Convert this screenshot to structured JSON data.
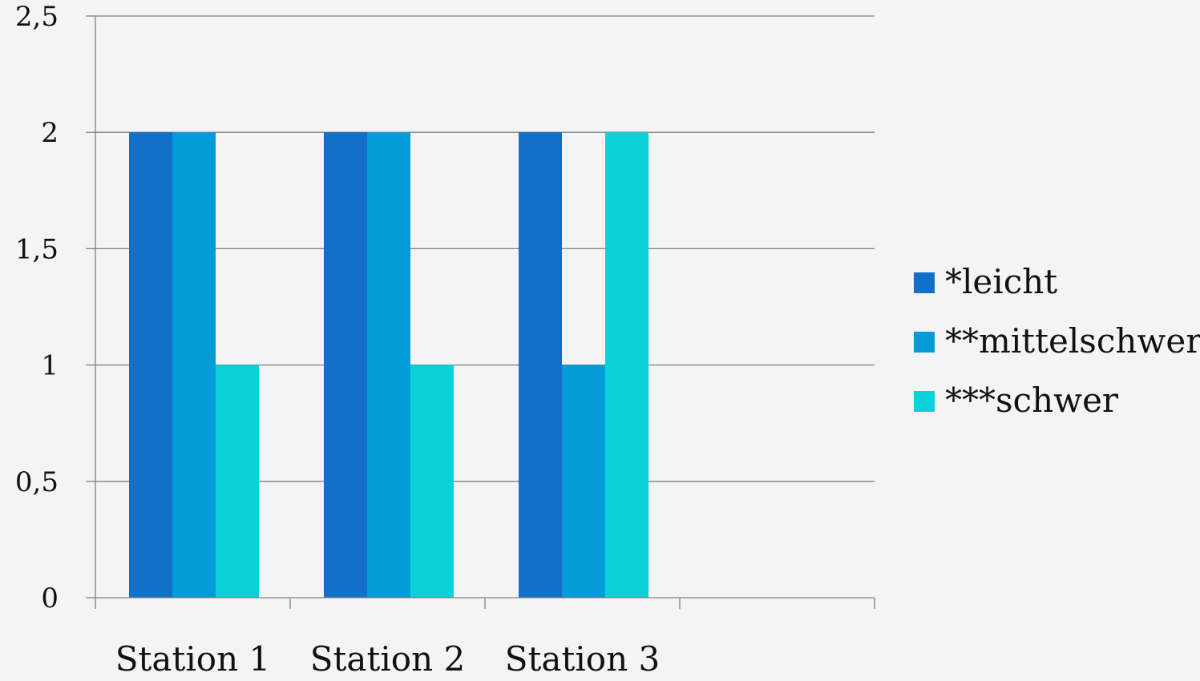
{
  "chart_data": {
    "type": "bar",
    "categories": [
      "Station 1",
      "Station 2",
      "Station 3",
      ""
    ],
    "series": [
      {
        "name": "*leicht",
        "values": [
          2,
          2,
          2,
          null
        ],
        "color": "#1270c8"
      },
      {
        "name": "**mittelschwer",
        "values": [
          2,
          2,
          1,
          null
        ],
        "color": "#039bd8"
      },
      {
        "name": "***schwer",
        "values": [
          1,
          1,
          2,
          null
        ],
        "color": "#0cd0da"
      }
    ],
    "y_ticks": [
      "0",
      "0,5",
      "1",
      "1,5",
      "2",
      "2,5"
    ],
    "y_tick_values": [
      0,
      0.5,
      1,
      1.5,
      2,
      2.5
    ],
    "ylim": [
      0,
      2.5
    ],
    "grid": true,
    "legend_position": "right",
    "colors": {
      "background": "#f4f4f4",
      "gridline": "#7f7f7f",
      "axis": "#7f7f7f"
    }
  }
}
